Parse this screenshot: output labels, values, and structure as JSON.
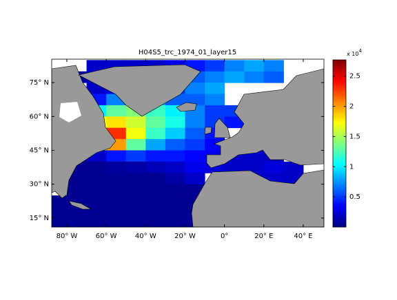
{
  "chart_data": {
    "type": "heatmap",
    "title": "H04S5_trc_1974_01_layer15",
    "x": [
      -85,
      -75,
      -65,
      -55,
      -45,
      -35,
      -25,
      -15,
      -5,
      5,
      15,
      25,
      35,
      45
    ],
    "y": [
      82.5,
      77.5,
      72.5,
      67.5,
      62.5,
      57.5,
      52.5,
      47.5,
      42.5,
      37.5,
      32.5,
      27.5,
      22.5,
      17.5,
      12.5
    ],
    "values": [
      [
        null,
        null,
        0.2,
        0.2,
        0.2,
        0.2,
        0.3,
        0.4,
        0.5,
        0.7,
        0.8,
        0.7,
        null,
        null
      ],
      [
        null,
        0.1,
        0.2,
        null,
        null,
        null,
        0.4,
        0.6,
        0.7,
        0.8,
        0.7,
        0.6,
        null,
        null
      ],
      [
        null,
        null,
        0.2,
        0.3,
        null,
        null,
        0.5,
        0.7,
        0.8,
        null,
        null,
        null,
        null,
        null
      ],
      [
        null,
        null,
        0.4,
        0.7,
        0.9,
        0.8,
        0.6,
        0.6,
        0.7,
        null,
        null,
        null,
        null,
        null
      ],
      [
        null,
        null,
        1.0,
        1.3,
        1.4,
        1.2,
        1.0,
        0.7,
        0.5,
        0.5,
        null,
        null,
        null,
        null
      ],
      [
        null,
        null,
        1.7,
        1.8,
        1.6,
        1.3,
        1.1,
        0.7,
        0.5,
        0.4,
        0.3,
        null,
        null,
        null
      ],
      [
        null,
        null,
        1.9,
        2.3,
        1.7,
        1.2,
        0.9,
        0.6,
        0.4,
        null,
        null,
        null,
        null,
        null
      ],
      [
        null,
        null,
        1.4,
        2.0,
        1.3,
        0.8,
        0.6,
        0.5,
        0.35,
        null,
        null,
        null,
        null,
        null
      ],
      [
        null,
        0.05,
        0.2,
        0.4,
        0.5,
        0.4,
        0.4,
        0.35,
        0.3,
        0.2,
        0.2,
        0.15,
        null,
        null
      ],
      [
        null,
        0.05,
        0.05,
        0.08,
        0.1,
        0.15,
        0.2,
        0.3,
        0.25,
        0.2,
        0.2,
        0.25,
        0.2,
        null
      ],
      [
        null,
        0.05,
        0.05,
        0.05,
        0.05,
        0.05,
        0.1,
        0.2,
        null,
        0.2,
        0.2,
        0.2,
        0.2,
        null
      ],
      [
        null,
        0.05,
        0.05,
        0.05,
        0.05,
        0.05,
        0.05,
        0.05,
        null,
        null,
        null,
        null,
        null,
        null
      ],
      [
        0.05,
        0.05,
        0.05,
        0.05,
        0.05,
        0.05,
        0.05,
        0.05,
        null,
        null,
        null,
        null,
        null,
        null
      ],
      [
        0.05,
        0.05,
        0.05,
        0.05,
        0.05,
        0.05,
        0.05,
        0.05,
        null,
        null,
        null,
        null,
        null,
        null
      ],
      [
        0.05,
        0.05,
        0.05,
        0.05,
        0.05,
        0.05,
        0.05,
        0.05,
        null,
        null,
        null,
        null,
        null,
        null
      ]
    ],
    "xlim": [
      -87.7,
      50.5
    ],
    "ylim": [
      11,
      85.4
    ],
    "xticks": [
      {
        "value": -80,
        "label": "80° W"
      },
      {
        "value": -60,
        "label": "60° W"
      },
      {
        "value": -40,
        "label": "40° W"
      },
      {
        "value": -20,
        "label": "20° W"
      },
      {
        "value": 0,
        "label": "0°"
      },
      {
        "value": 20,
        "label": "20° E"
      },
      {
        "value": 40,
        "label": "40° E"
      }
    ],
    "yticks": [
      {
        "value": 15,
        "label": "15° N"
      },
      {
        "value": 30,
        "label": "30° N"
      },
      {
        "value": 45,
        "label": "45° N"
      },
      {
        "value": 60,
        "label": "60° N"
      },
      {
        "value": 75,
        "label": "75° N"
      }
    ],
    "colorbar": {
      "lim": [
        0,
        2.77
      ],
      "ticks": [
        0.5,
        1,
        1.5,
        2,
        2.5
      ],
      "multiplier": {
        "base": "x 10",
        "exponent": "4"
      },
      "colormap": "jet"
    }
  }
}
